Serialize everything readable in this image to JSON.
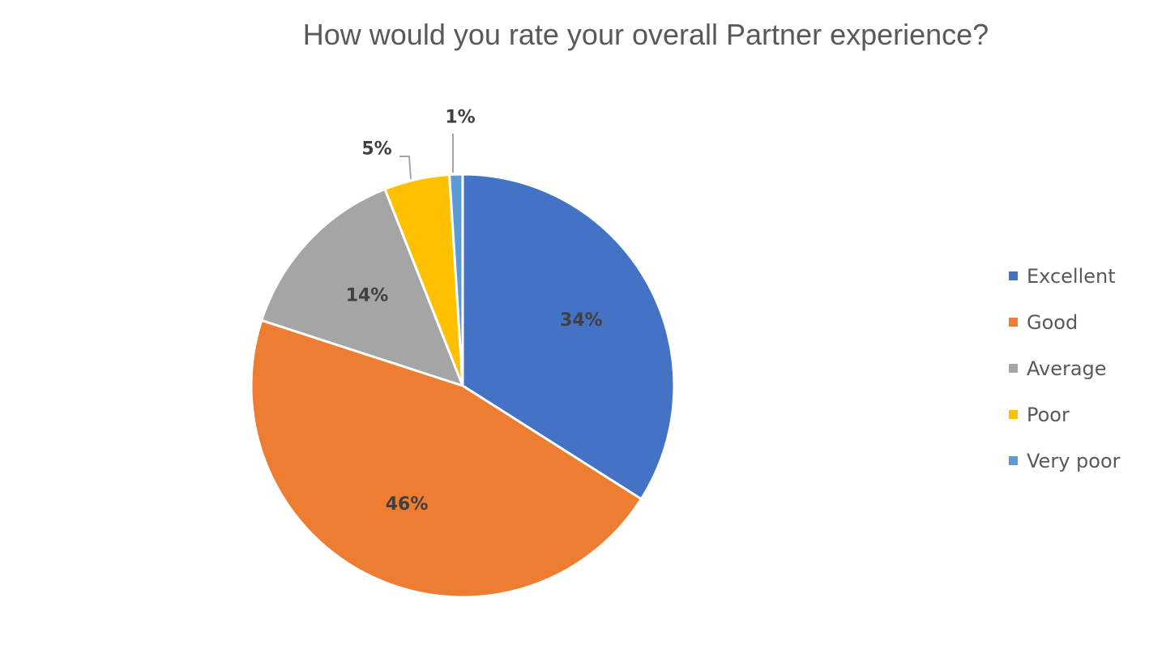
{
  "chart_data": {
    "type": "pie",
    "title": "How would you rate your overall Partner experience?",
    "categories": [
      "Excellent",
      "Good",
      "Average",
      "Poor",
      "Very poor"
    ],
    "values": [
      34,
      46,
      14,
      5,
      1
    ],
    "data_labels": [
      "34%",
      "46%",
      "14%",
      "5%",
      "1%"
    ],
    "colors": [
      "#4472C4",
      "#ED7D31",
      "#A5A5A5",
      "#FFC000",
      "#5B9BD5"
    ],
    "start_angle": "12 o'clock",
    "direction": "clockwise",
    "legend_position": "right"
  }
}
